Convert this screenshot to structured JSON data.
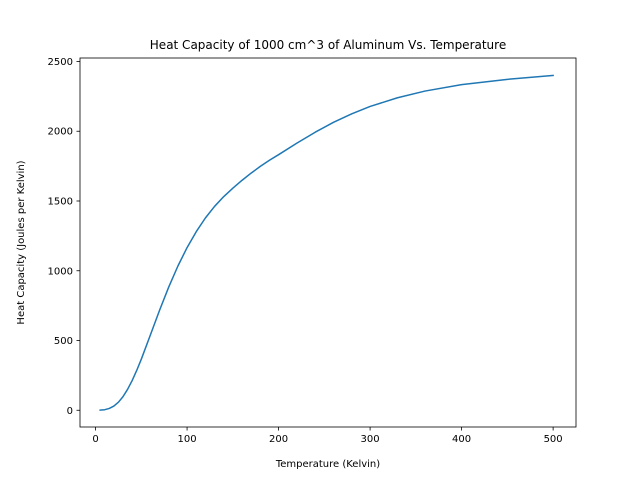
{
  "chart_data": {
    "type": "line",
    "title": "Heat Capacity of 1000 cm^3 of Aluminum Vs. Temperature",
    "xlabel": "Temperature (Kelvin)",
    "ylabel": "Heat Capacity (Joules per Kelvin)",
    "xlim": [
      -17,
      525
    ],
    "ylim": [
      -120,
      2525
    ],
    "xticks": [
      0,
      100,
      200,
      300,
      400,
      500
    ],
    "yticks": [
      0,
      500,
      1000,
      1500,
      2000,
      2500
    ],
    "grid": false,
    "legend": "none",
    "series": [
      {
        "color": "#1f77b4",
        "x": [
          5,
          10,
          15,
          20,
          25,
          30,
          35,
          40,
          45,
          50,
          60,
          70,
          80,
          90,
          100,
          110,
          120,
          130,
          140,
          150,
          160,
          170,
          180,
          190,
          200,
          220,
          240,
          260,
          280,
          300,
          330,
          360,
          400,
          450,
          500
        ],
        "y": [
          1,
          4,
          13,
          30,
          58,
          98,
          150,
          213,
          286,
          366,
          541,
          718,
          884,
          1034,
          1166,
          1280,
          1378,
          1461,
          1531,
          1592,
          1648,
          1700,
          1748,
          1792,
          1832,
          1915,
          1993,
          2064,
          2125,
          2178,
          2240,
          2288,
          2334,
          2372,
          2400
        ]
      }
    ]
  }
}
